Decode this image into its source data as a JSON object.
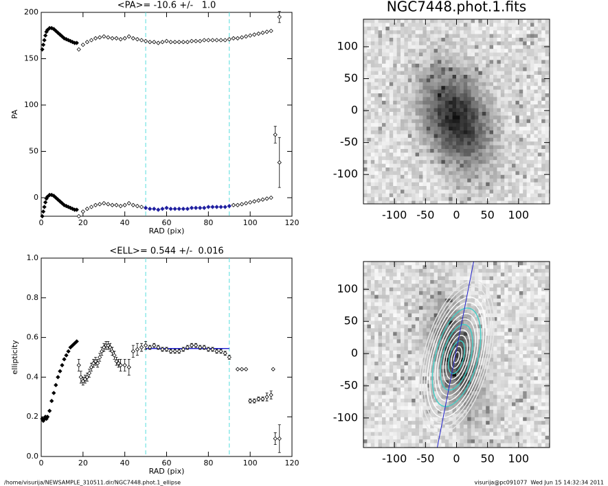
{
  "chart_data": [
    {
      "type": "scatter",
      "title": "<PA>= -10.6 +/-   1.0",
      "x_label": "RAD (pix)",
      "y_label": "PA",
      "xlim": [
        0,
        120
      ],
      "xticks": [
        0,
        20,
        40,
        60,
        80,
        100,
        120
      ],
      "ylim": [
        -20,
        200
      ],
      "yticks": [
        0,
        50,
        100,
        150,
        200
      ],
      "vlines": [
        50,
        90
      ],
      "vline_color": "#55dddd",
      "series": [
        {
          "color": "#000000",
          "filled": true,
          "x": [
            0.5,
            1,
            1.5,
            2,
            2.5,
            3,
            4,
            5,
            6,
            7,
            8,
            9,
            10,
            11,
            12,
            13,
            14,
            15,
            16,
            17
          ],
          "values": [
            160,
            165,
            170,
            175,
            179,
            181,
            183,
            183,
            182,
            180,
            178,
            176,
            174,
            172,
            171,
            170,
            169,
            168,
            167,
            167
          ]
        },
        {
          "color": "#000000",
          "filled": false,
          "x": [
            18,
            20,
            22,
            24,
            26,
            28,
            30,
            32,
            34,
            36,
            38,
            40,
            42,
            44,
            46,
            48,
            50,
            52,
            54,
            56,
            58,
            60,
            62,
            64,
            66,
            68,
            70,
            72,
            74,
            76,
            78,
            80,
            82,
            84,
            86,
            88,
            90,
            92,
            94,
            96,
            98,
            100,
            102,
            104,
            106,
            108,
            110
          ],
          "values": [
            160,
            165,
            168,
            170,
            172,
            173,
            174,
            173,
            172,
            172,
            171,
            172,
            174,
            172,
            171,
            170,
            169,
            168,
            168,
            167,
            168,
            169,
            168,
            168,
            168,
            168,
            168,
            169,
            169,
            169,
            170,
            170,
            170,
            170,
            170,
            170,
            171,
            172,
            172,
            173,
            174,
            175,
            176,
            177,
            178,
            179,
            180
          ]
        },
        {
          "color": "#000000",
          "filled": false,
          "x": [
            112,
            114,
            114
          ],
          "values": [
            68,
            38,
            195
          ],
          "errors": [
            9,
            27,
            6
          ]
        },
        {
          "color": "#000000",
          "filled": true,
          "x": [
            0.5,
            1,
            1.5,
            2,
            2.5,
            3,
            4,
            5,
            6,
            7,
            8,
            9,
            10,
            11,
            12,
            13,
            14,
            15,
            16,
            17
          ],
          "values": [
            -20,
            -15,
            -10,
            -5,
            -1,
            1,
            3,
            3,
            2,
            0,
            -2,
            -4,
            -6,
            -8,
            -9,
            -10,
            -11,
            -12,
            -13,
            -13
          ]
        },
        {
          "color": "#000000",
          "filled": false,
          "x": [
            18,
            20,
            22,
            24,
            26,
            28,
            30,
            32,
            34,
            36,
            38,
            40,
            42,
            44,
            46,
            48,
            92,
            94,
            96,
            98,
            100,
            102,
            104,
            106,
            108,
            110
          ],
          "values": [
            -20,
            -15,
            -12,
            -10,
            -8,
            -7,
            -6,
            -7,
            -8,
            -8,
            -9,
            -8,
            -6,
            -8,
            -9,
            -10,
            -8,
            -8,
            -7,
            -6,
            -5,
            -4,
            -3,
            -2,
            -1,
            0
          ]
        },
        {
          "color": "#2020a0",
          "filled": true,
          "x": [
            50,
            52,
            54,
            56,
            58,
            60,
            62,
            64,
            66,
            68,
            70,
            72,
            74,
            76,
            78,
            80,
            82,
            84,
            86,
            88,
            90
          ],
          "values": [
            -11,
            -12,
            -12,
            -13,
            -12,
            -11,
            -12,
            -12,
            -12,
            -12,
            -12,
            -11,
            -11,
            -11,
            -11,
            -10,
            -10,
            -10,
            -10,
            -10,
            -9
          ]
        }
      ]
    },
    {
      "type": "image",
      "title": "NGC7448.phot.1.fits",
      "xlim": [
        -150,
        150
      ],
      "xticks": [
        -100,
        -50,
        0,
        50,
        100
      ],
      "ylim": [
        -146,
        143
      ],
      "yticks": [
        -100,
        -50,
        0,
        50,
        100
      ]
    },
    {
      "type": "scatter",
      "title": "<ELL>= 0.544 +/-  0.016",
      "x_label": "RAD (pix)",
      "y_label": "ellipticity",
      "xlim": [
        0,
        120
      ],
      "xticks": [
        0,
        20,
        40,
        60,
        80,
        100,
        120
      ],
      "ylim": [
        0,
        1
      ],
      "yticks": [
        {
          "value": 0,
          "label": "0.0"
        },
        0.2,
        0.4,
        0.6,
        0.8,
        {
          "value": 1,
          "label": "1.0"
        }
      ],
      "vlines": [
        50,
        90
      ],
      "vline_color": "#55dddd",
      "fit": {
        "x": [
          50,
          90
        ],
        "value": 0.544,
        "color": "#0000cc"
      },
      "series": [
        {
          "color": "#000000",
          "filled": true,
          "x": [
            0.5,
            1,
            1.5,
            2,
            2.5,
            3,
            4,
            5,
            6,
            7,
            8,
            9,
            10,
            11,
            12,
            13,
            14,
            15,
            16,
            17
          ],
          "values": [
            0.19,
            0.18,
            0.19,
            0.2,
            0.19,
            0.2,
            0.23,
            0.28,
            0.32,
            0.36,
            0.4,
            0.43,
            0.46,
            0.49,
            0.51,
            0.53,
            0.55,
            0.56,
            0.57,
            0.58
          ]
        },
        {
          "color": "#000000",
          "filled": false,
          "x": [
            18,
            19,
            20,
            21,
            22,
            23,
            24,
            25,
            26,
            27,
            28,
            29,
            30,
            31,
            32,
            33,
            34,
            35,
            36,
            37,
            38,
            40,
            42,
            44,
            46,
            48,
            50,
            52,
            54,
            56,
            58,
            60,
            62,
            64,
            66,
            68,
            70,
            72,
            74,
            76,
            78,
            80,
            82,
            84,
            86,
            88,
            90
          ],
          "values": [
            0.46,
            0.4,
            0.38,
            0.39,
            0.4,
            0.42,
            0.45,
            0.47,
            0.48,
            0.47,
            0.5,
            0.53,
            0.55,
            0.56,
            0.56,
            0.55,
            0.53,
            0.51,
            0.48,
            0.47,
            0.46,
            0.46,
            0.45,
            0.53,
            0.54,
            0.55,
            0.56,
            0.55,
            0.56,
            0.55,
            0.54,
            0.54,
            0.53,
            0.53,
            0.53,
            0.54,
            0.55,
            0.56,
            0.56,
            0.55,
            0.55,
            0.54,
            0.54,
            0.53,
            0.53,
            0.52,
            0.5
          ],
          "errors": [
            0.03,
            0.03,
            0.02,
            0.02,
            0.02,
            0.02,
            0.02,
            0.02,
            0.02,
            0.02,
            0.02,
            0.02,
            0.02,
            0.02,
            0.02,
            0.02,
            0.02,
            0.02,
            0.02,
            0.02,
            0.03,
            0.03,
            0.04,
            0.03,
            0.03,
            0.02,
            0.02,
            0.01,
            0.01,
            0.01,
            0.01,
            0.01,
            0.01,
            0.01,
            0.01,
            0.01,
            0.01,
            0.01,
            0.01,
            0.01,
            0.01,
            0.01,
            0.01,
            0.01,
            0.01,
            0.01,
            0.01
          ]
        },
        {
          "color": "#000000",
          "filled": false,
          "x": [
            94,
            96,
            98,
            100,
            102,
            104,
            106,
            108,
            110,
            111,
            112,
            114
          ],
          "values": [
            0.44,
            0.44,
            0.44,
            0.28,
            0.28,
            0.29,
            0.29,
            0.3,
            0.31,
            0.44,
            0.09,
            0.09
          ],
          "errors": [
            0,
            0,
            0,
            0.01,
            0.01,
            0.01,
            0.01,
            0.02,
            0.02,
            0,
            0.03,
            0.07
          ]
        }
      ]
    },
    {
      "type": "image",
      "title": "",
      "xlim": [
        -150,
        150
      ],
      "xticks": [
        -100,
        -50,
        0,
        50,
        100
      ],
      "ylim": [
        -146,
        143
      ],
      "yticks": [
        -100,
        -50,
        0,
        50,
        100
      ]
    }
  ],
  "footer": {
    "left": "/home/visurija/NEWSAMPLE_310511.dir/NGC7448.phot.1_ellipse",
    "right": "visurija@pc091077  Wed Jun 15 14:32:34 2011"
  }
}
